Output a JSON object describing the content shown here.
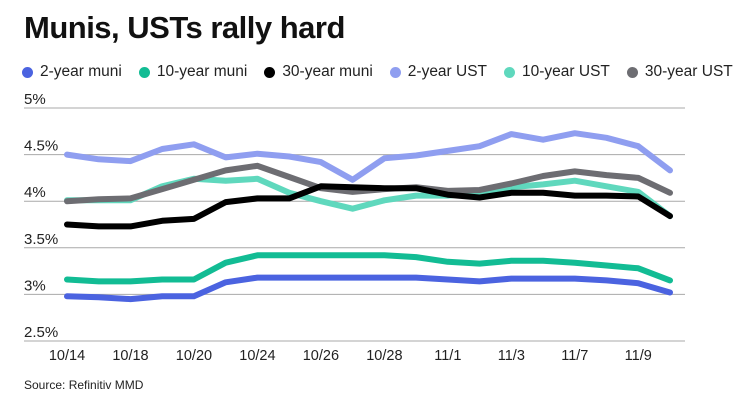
{
  "chart_data": {
    "type": "line",
    "title": "Munis, USTs rally hard",
    "source": "Source: Refinitiv MMD",
    "xlabel": "",
    "ylabel": "",
    "ylim": [
      2.5,
      5.0
    ],
    "yticks": [
      {
        "value": 5.0,
        "label": "5%"
      },
      {
        "value": 4.5,
        "label": "4.5%"
      },
      {
        "value": 4.0,
        "label": "4%"
      },
      {
        "value": 3.5,
        "label": "3.5%"
      },
      {
        "value": 3.0,
        "label": "3%"
      },
      {
        "value": 2.5,
        "label": "2.5%"
      }
    ],
    "grid": true,
    "legend_position": "top",
    "point_count": 20,
    "xtick_labels": [
      {
        "index": 0,
        "label": "10/14"
      },
      {
        "index": 2,
        "label": "10/18"
      },
      {
        "index": 4,
        "label": "10/20"
      },
      {
        "index": 6,
        "label": "10/24"
      },
      {
        "index": 8,
        "label": "10/26"
      },
      {
        "index": 10,
        "label": "10/28"
      },
      {
        "index": 12,
        "label": "11/1"
      },
      {
        "index": 14,
        "label": "11/3"
      },
      {
        "index": 16,
        "label": "11/7"
      },
      {
        "index": 18,
        "label": "11/9"
      }
    ],
    "series": [
      {
        "name": "2-year UST",
        "color": "#8f9ef0",
        "values": [
          4.5,
          4.45,
          4.43,
          4.56,
          4.61,
          4.47,
          4.51,
          4.48,
          4.42,
          4.23,
          4.46,
          4.49,
          4.54,
          4.59,
          4.72,
          4.66,
          4.73,
          4.68,
          4.59,
          4.33
        ]
      },
      {
        "name": "10-year UST",
        "color": "#5fd8bd",
        "values": [
          4.01,
          4.01,
          4.01,
          4.16,
          4.24,
          4.22,
          4.24,
          4.09,
          4.0,
          3.92,
          4.01,
          4.06,
          4.06,
          4.09,
          4.15,
          4.18,
          4.22,
          4.16,
          4.1,
          3.84
        ]
      },
      {
        "name": "30-year UST",
        "color": "#6d6d72",
        "values": [
          4.0,
          4.02,
          4.03,
          4.13,
          4.23,
          4.33,
          4.38,
          4.26,
          4.14,
          4.1,
          4.13,
          4.15,
          4.11,
          4.12,
          4.19,
          4.27,
          4.32,
          4.28,
          4.25,
          4.09
        ]
      },
      {
        "name": "30-year muni",
        "color": "#000000",
        "values": [
          3.75,
          3.73,
          3.73,
          3.79,
          3.81,
          3.99,
          4.03,
          4.03,
          4.16,
          4.15,
          4.14,
          4.14,
          4.07,
          4.04,
          4.09,
          4.09,
          4.06,
          4.06,
          4.05,
          3.84
        ]
      },
      {
        "name": "10-year muni",
        "color": "#12bc94",
        "values": [
          3.16,
          3.14,
          3.14,
          3.16,
          3.16,
          3.34,
          3.42,
          3.42,
          3.42,
          3.42,
          3.42,
          3.4,
          3.35,
          3.33,
          3.36,
          3.36,
          3.34,
          3.31,
          3.28,
          3.15
        ]
      },
      {
        "name": "2-year muni",
        "color": "#4b63e0",
        "values": [
          2.98,
          2.97,
          2.95,
          2.98,
          2.98,
          3.13,
          3.18,
          3.18,
          3.18,
          3.18,
          3.18,
          3.18,
          3.16,
          3.14,
          3.17,
          3.17,
          3.17,
          3.15,
          3.12,
          3.02
        ]
      }
    ]
  },
  "legend": [
    {
      "label": "2-year muni",
      "color": "#4b63e0"
    },
    {
      "label": "10-year muni",
      "color": "#12bc94"
    },
    {
      "label": "30-year muni",
      "color": "#000000"
    },
    {
      "label": "2-year UST",
      "color": "#8f9ef0"
    },
    {
      "label": "10-year UST",
      "color": "#5fd8bd"
    },
    {
      "label": "30-year UST",
      "color": "#6d6d72"
    }
  ]
}
